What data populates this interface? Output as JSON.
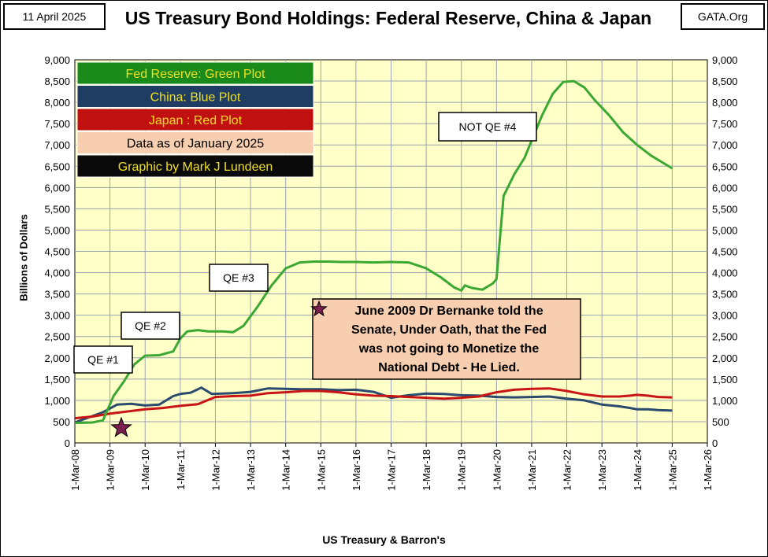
{
  "header": {
    "date": "11 April 2025",
    "title": "US Treasury Bond Holdings: Federal Reserve, China & Japan",
    "site": "GATA.Org"
  },
  "legend": [
    {
      "label": "Fed Reserve: Green Plot",
      "bg": "#1a8a1a",
      "fg": "#f0e020"
    },
    {
      "label": "China: Blue Plot",
      "bg": "#1f3d63",
      "fg": "#f0e020"
    },
    {
      "label": "Japan : Red Plot",
      "bg": "#c01010",
      "fg": "#f0e020"
    },
    {
      "label": "Data as of January 2025",
      "bg": "#f7cfb0",
      "fg": "#000000"
    },
    {
      "label": "Graphic by Mark J Lundeen",
      "bg": "#0a0a0a",
      "fg": "#f0e020"
    }
  ],
  "annotations": {
    "qe1": "QE #1",
    "qe2": "QE #2",
    "qe3": "QE #3",
    "not_qe4": "NOT QE #4",
    "bernanke": [
      "June 2009 Dr Bernanke told the",
      "Senate, Under Oath, that the Fed",
      "was not going to Monetize the",
      "National Debt - He Lied."
    ]
  },
  "colors": {
    "plot_bg": "#ffffc8",
    "grid": "#9aa4b0",
    "fed": "#3aa832",
    "china": "#2a4a6e",
    "japan": "#c81414",
    "star": "#7a1f4f",
    "note_bg": "#f7cfb0"
  },
  "chart_data": {
    "type": "line",
    "title": "US Treasury Bond Holdings: Federal Reserve, China & Japan",
    "xlabel": "US Treasury  & Barron's",
    "ylabel": "Billions of Dollars",
    "ylim": [
      0,
      9000
    ],
    "xlim": [
      2008,
      2026
    ],
    "y_ticks": [
      0,
      500,
      1000,
      1500,
      2000,
      2500,
      3000,
      3500,
      4000,
      4500,
      5000,
      5500,
      6000,
      6500,
      7000,
      7500,
      8000,
      8500,
      9000
    ],
    "x_ticks": [
      "1-Mar-08",
      "1-Mar-09",
      "1-Mar-10",
      "1-Mar-11",
      "1-Mar-12",
      "1-Mar-13",
      "1-Mar-14",
      "1-Mar-15",
      "1-Mar-16",
      "1-Mar-17",
      "1-Mar-18",
      "1-Mar-19",
      "1-Mar-20",
      "1-Mar-21",
      "1-Mar-22",
      "1-Mar-23",
      "1-Mar-24",
      "1-Mar-25",
      "1-Mar-26"
    ],
    "grid": true,
    "series": [
      {
        "name": "Fed Reserve",
        "x": [
          2008.0,
          2008.5,
          2008.8,
          2009.1,
          2009.4,
          2009.7,
          2010.0,
          2010.4,
          2010.8,
          2011.0,
          2011.2,
          2011.5,
          2011.8,
          2012.2,
          2012.5,
          2012.8,
          2013.2,
          2013.6,
          2014.0,
          2014.4,
          2014.8,
          2015.2,
          2015.6,
          2016.0,
          2016.5,
          2017.0,
          2017.5,
          2018.0,
          2018.4,
          2018.8,
          2019.0,
          2019.1,
          2019.3,
          2019.6,
          2019.9,
          2020.0,
          2020.2,
          2020.5,
          2020.8,
          2021.0,
          2021.3,
          2021.6,
          2021.9,
          2022.2,
          2022.5,
          2022.8,
          2023.2,
          2023.6,
          2024.0,
          2024.4,
          2024.7,
          2025.0
        ],
        "values": [
          470,
          480,
          530,
          1100,
          1450,
          1850,
          2050,
          2060,
          2150,
          2450,
          2620,
          2650,
          2620,
          2620,
          2600,
          2750,
          3200,
          3700,
          4100,
          4240,
          4260,
          4260,
          4250,
          4250,
          4240,
          4250,
          4240,
          4100,
          3900,
          3650,
          3580,
          3700,
          3640,
          3600,
          3750,
          3850,
          5800,
          6300,
          6700,
          7100,
          7700,
          8200,
          8480,
          8500,
          8350,
          8050,
          7700,
          7300,
          7000,
          6750,
          6600,
          6450
        ]
      },
      {
        "name": "China",
        "x": [
          2008.0,
          2008.4,
          2008.8,
          2009.2,
          2009.6,
          2010.0,
          2010.4,
          2010.6,
          2010.8,
          2011.0,
          2011.3,
          2011.6,
          2011.9,
          2012.2,
          2012.5,
          2013.0,
          2013.5,
          2014.0,
          2014.5,
          2015.0,
          2015.5,
          2016.0,
          2016.5,
          2017.0,
          2017.5,
          2018.0,
          2018.5,
          2019.0,
          2019.5,
          2020.0,
          2020.5,
          2021.0,
          2021.5,
          2022.0,
          2022.5,
          2023.0,
          2023.5,
          2023.8,
          2024.0,
          2024.3,
          2024.6,
          2025.0
        ],
        "values": [
          480,
          600,
          720,
          900,
          920,
          880,
          900,
          1000,
          1100,
          1150,
          1180,
          1300,
          1150,
          1160,
          1170,
          1200,
          1280,
          1270,
          1260,
          1260,
          1240,
          1250,
          1200,
          1060,
          1120,
          1160,
          1150,
          1120,
          1110,
          1080,
          1070,
          1080,
          1090,
          1040,
          1000,
          900,
          860,
          820,
          790,
          790,
          770,
          760
        ]
      },
      {
        "name": "Japan",
        "x": [
          2008.0,
          2008.5,
          2009.0,
          2009.5,
          2010.0,
          2010.5,
          2011.0,
          2011.5,
          2012.0,
          2012.5,
          2013.0,
          2013.5,
          2014.0,
          2014.5,
          2015.0,
          2015.5,
          2016.0,
          2016.5,
          2017.0,
          2017.5,
          2018.0,
          2018.5,
          2019.0,
          2019.5,
          2020.0,
          2020.5,
          2021.0,
          2021.5,
          2022.0,
          2022.5,
          2023.0,
          2023.5,
          2023.8,
          2024.0,
          2024.3,
          2024.6,
          2025.0
        ],
        "values": [
          580,
          620,
          690,
          740,
          790,
          820,
          870,
          910,
          1080,
          1100,
          1110,
          1170,
          1190,
          1220,
          1220,
          1190,
          1140,
          1110,
          1100,
          1080,
          1060,
          1040,
          1060,
          1090,
          1190,
          1250,
          1270,
          1280,
          1220,
          1140,
          1090,
          1090,
          1110,
          1130,
          1110,
          1080,
          1070
        ]
      }
    ]
  }
}
